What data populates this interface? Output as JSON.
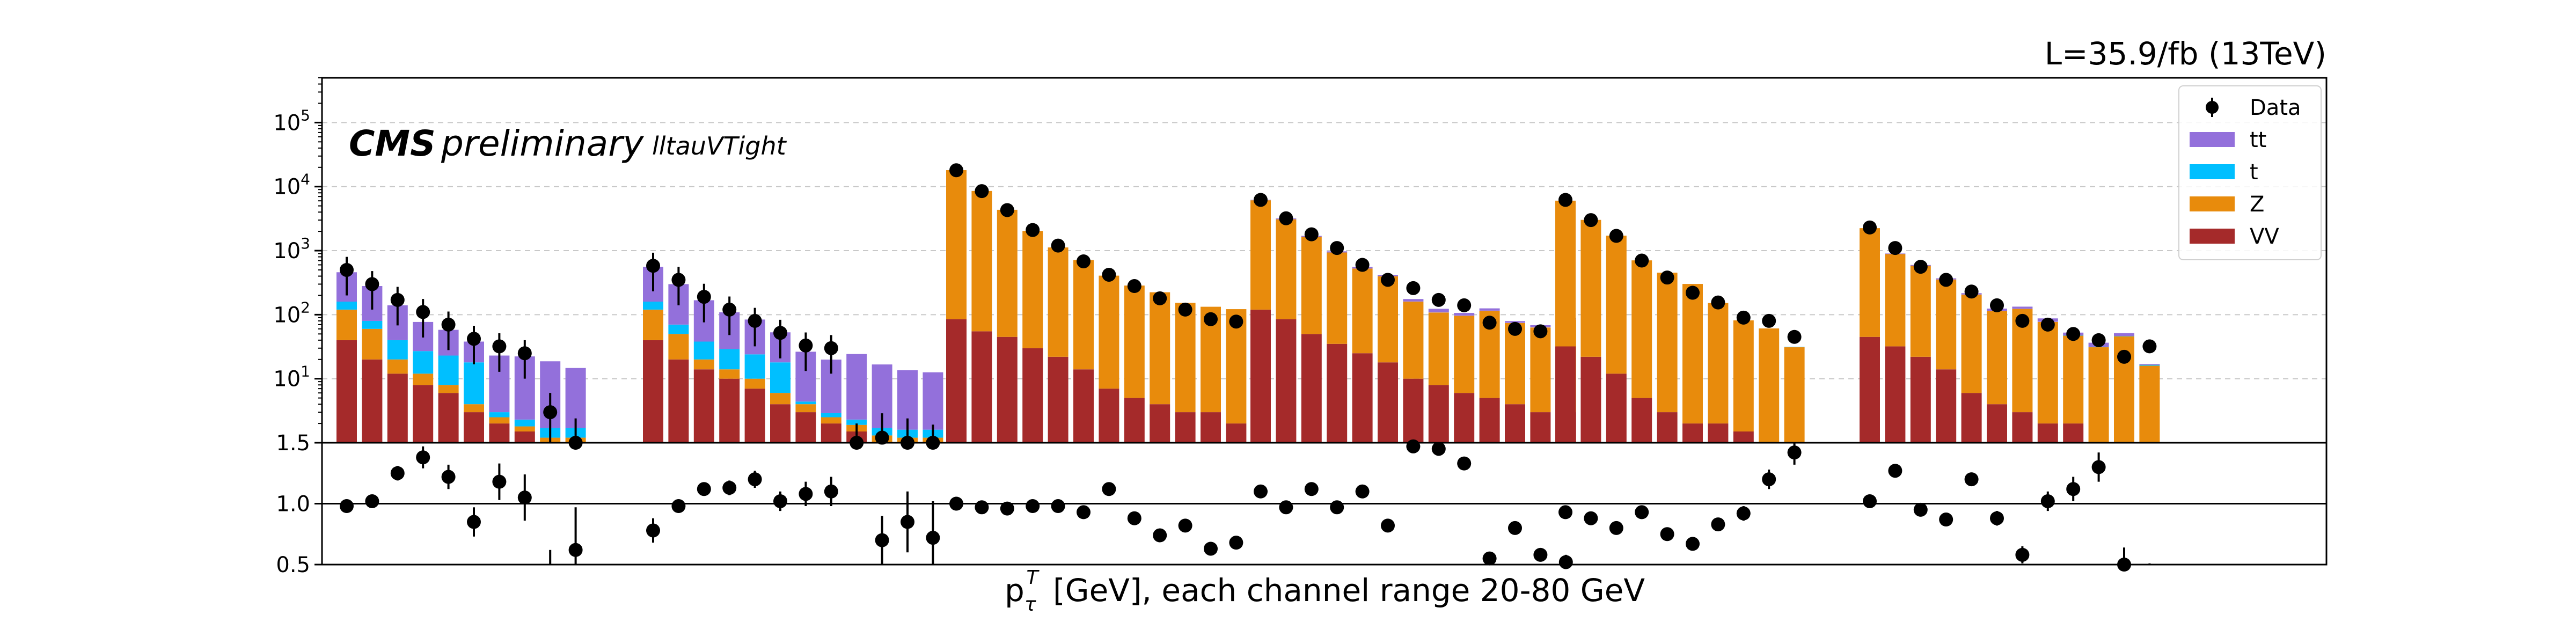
{
  "chart_data": {
    "type": "bar",
    "stacked": true,
    "log_scale_main": true,
    "lumi_label": "L=35.9/fb (13TeV)",
    "experiment": "CMS",
    "status": "preliminary",
    "selection_label": "lltauVTight",
    "xlabel_main": "[GeV], each channel range 20-80 GeV",
    "main_ylim": [
      1,
      500000
    ],
    "main_yticks": [
      "10^1",
      "10^2",
      "10^3",
      "10^4",
      "10^5"
    ],
    "ratio_ylim": [
      0.5,
      1.5
    ],
    "ratio_yticks": [
      "0.5",
      "1.0",
      "1.5"
    ],
    "grid": "horizontal dashed on main panel",
    "legend_position": "top-right",
    "legend": [
      {
        "name": "Data",
        "kind": "marker",
        "color": "#000000"
      },
      {
        "name": "tt",
        "kind": "box",
        "color": "#9370db"
      },
      {
        "name": "t",
        "kind": "box",
        "color": "#00bfff"
      },
      {
        "name": "Z",
        "kind": "box",
        "color": "#e88b0c"
      },
      {
        "name": "VV",
        "kind": "box",
        "color": "#a52a2a"
      }
    ],
    "channels": [
      {
        "bins": 10,
        "VV": [
          40,
          20,
          12,
          8,
          6,
          3,
          2,
          1.5,
          1,
          1
        ],
        "Z": [
          80,
          40,
          8,
          4,
          2,
          1,
          0.5,
          0.3,
          0.2,
          0.2
        ],
        "t": [
          40,
          20,
          20,
          15,
          15,
          14,
          0.5,
          0.5,
          0.5,
          0.5
        ],
        "tt": [
          300,
          200,
          100,
          50,
          35,
          20,
          20,
          20,
          17,
          13
        ],
        "data": [
          500,
          300,
          170,
          110,
          70,
          42,
          32,
          25,
          3,
          1
        ],
        "data_err": [
          0.6,
          0.6,
          0.6,
          0.6,
          0.6,
          0.6,
          0.6,
          0.6,
          1.0,
          1.4
        ],
        "ratio": [
          0.98,
          1.02,
          1.25,
          1.38,
          1.22,
          0.85,
          1.18,
          1.05,
          0.32,
          0.62
        ],
        "ratio_err": [
          0.02,
          0.04,
          0.06,
          0.09,
          0.1,
          0.12,
          0.15,
          0.19,
          0.3,
          0.35
        ]
      },
      {
        "bins": 12,
        "VV": [
          40,
          20,
          14,
          10,
          7,
          4,
          3,
          2,
          1.5,
          1,
          1,
          1
        ],
        "Z": [
          80,
          30,
          6,
          4,
          3,
          2,
          1,
          0.5,
          0.4,
          0.3,
          0.2,
          0.2
        ],
        "t": [
          40,
          20,
          18,
          15,
          14,
          12,
          0.4,
          0.4,
          0.4,
          0.4,
          0.4,
          0.4
        ],
        "tt": [
          400,
          230,
          130,
          80,
          60,
          35,
          22,
          17,
          22,
          15,
          12,
          11
        ],
        "data": [
          580,
          350,
          190,
          120,
          80,
          52,
          33,
          30,
          1,
          1.2,
          1,
          0.8
        ],
        "data_err": [
          0.6,
          0.6,
          0.6,
          0.6,
          0.6,
          0.6,
          0.6,
          0.6,
          1.0,
          1.4,
          1.4,
          1.4
        ],
        "ratio": [
          0.78,
          0.98,
          1.12,
          1.13,
          1.2,
          1.02,
          1.08,
          1.1,
          0.3,
          0.7,
          0.85,
          0.72
        ],
        "ratio_err": [
          0.1,
          0.02,
          0.04,
          0.06,
          0.07,
          0.08,
          0.1,
          0.12,
          0.2,
          0.2,
          0.25,
          0.3
        ]
      },
      {
        "bins": 12,
        "VV": [
          85,
          55,
          45,
          30,
          22,
          14,
          7,
          5,
          4,
          3,
          3,
          2
        ],
        "Z": [
          18000,
          8500,
          4300,
          2000,
          1100,
          700,
          400,
          280,
          220,
          150,
          130,
          120
        ],
        "t": [
          0.5,
          0.5,
          0.5,
          0.5,
          0.5,
          0.5,
          0.5,
          0.5,
          0.5,
          0.5,
          0.5,
          0.5
        ],
        "tt": [
          0.3,
          0.3,
          0.3,
          0.3,
          0.3,
          0.3,
          0.3,
          0.3,
          0.3,
          0.3,
          0.3,
          0.3
        ],
        "data": [
          18000,
          8500,
          4300,
          2100,
          1200,
          680,
          420,
          280,
          180,
          120,
          85,
          78
        ],
        "data_err": [
          0.05,
          0.05,
          0.05,
          0.05,
          0.06,
          0.07,
          0.08,
          0.1,
          0.1,
          0.1,
          0.12,
          0.12
        ],
        "ratio": [
          1.0,
          0.97,
          0.96,
          0.98,
          0.98,
          0.93,
          1.12,
          0.88,
          0.74,
          0.82,
          0.63,
          0.68
        ],
        "ratio_err": [
          0.01,
          0.01,
          0.01,
          0.02,
          0.02,
          0.02,
          0.03,
          0.03,
          0.03,
          0.04,
          0.04,
          0.04
        ]
      },
      {
        "bins": 13,
        "VV": [
          120,
          85,
          50,
          35,
          25,
          18,
          10,
          8,
          6,
          5,
          4,
          3,
          3
        ],
        "Z": [
          6000,
          3000,
          1600,
          900,
          500,
          380,
          150,
          100,
          90,
          110,
          70,
          60,
          80
        ],
        "t": [
          0.5,
          0.5,
          0.5,
          0.5,
          0.5,
          0.5,
          0.5,
          0.5,
          0.5,
          0.5,
          0.5,
          0.5,
          0.5
        ],
        "tt": [
          100,
          100,
          50,
          40,
          30,
          20,
          15,
          15,
          10,
          10,
          5,
          5,
          5
        ],
        "data": [
          6200,
          3200,
          1800,
          1100,
          600,
          350,
          260,
          170,
          140,
          75,
          60,
          55,
          50
        ],
        "data_err": [
          0.05,
          0.05,
          0.05,
          0.05,
          0.06,
          0.07,
          0.08,
          0.1,
          0.1,
          0.1,
          0.12,
          0.12,
          0.12
        ],
        "ratio": [
          1.1,
          0.97,
          1.12,
          0.97,
          1.1,
          0.82,
          1.47,
          1.45,
          1.33,
          0.55,
          0.8,
          0.58,
          0.52
        ],
        "ratio_err": [
          0.01,
          0.01,
          0.02,
          0.02,
          0.02,
          0.03,
          0.03,
          0.04,
          0.04,
          0.05,
          0.05,
          0.05,
          0.06
        ]
      },
      {
        "bins": 10,
        "VV": [
          32,
          22,
          12,
          5,
          3,
          2,
          2,
          1.5,
          1,
          1
        ],
        "Z": [
          6000,
          3000,
          1700,
          700,
          450,
          300,
          150,
          80,
          60,
          30
        ],
        "t": [
          0.5,
          0.5,
          0.5,
          0.5,
          0.5,
          0.5,
          0.5,
          0.5,
          0.5,
          0.5
        ],
        "tt": [
          0.3,
          0.3,
          0.3,
          0.3,
          0.3,
          0.3,
          0.3,
          0.3,
          0.3,
          0.3
        ],
        "data": [
          6200,
          3000,
          1700,
          700,
          380,
          220,
          155,
          90,
          80,
          45
        ],
        "data_err": [
          0.05,
          0.05,
          0.05,
          0.05,
          0.06,
          0.07,
          0.08,
          0.1,
          0.1,
          0.1
        ],
        "ratio": [
          0.93,
          0.88,
          0.8,
          0.93,
          0.75,
          0.67,
          0.83,
          0.92,
          1.2,
          1.42
        ],
        "ratio_err": [
          0.02,
          0.02,
          0.03,
          0.03,
          0.04,
          0.04,
          0.05,
          0.06,
          0.08,
          0.1
        ]
      },
      {
        "bins": 12,
        "VV": [
          45,
          32,
          22,
          14,
          6,
          4,
          3,
          2,
          2,
          1,
          1,
          1
        ],
        "Z": [
          2200,
          850,
          560,
          340,
          200,
          110,
          120,
          75,
          45,
          30,
          45,
          15
        ],
        "t": [
          0.5,
          0.5,
          0.5,
          0.5,
          0.5,
          0.5,
          0.5,
          0.5,
          0.5,
          0.5,
          0.5,
          0.5
        ],
        "tt": [
          20,
          20,
          15,
          15,
          10,
          10,
          10,
          10,
          5,
          5,
          5,
          0.5
        ],
        "data": [
          2300,
          1100,
          560,
          350,
          230,
          140,
          80,
          70,
          50,
          40,
          22,
          32
        ],
        "data_err": [
          0.05,
          0.05,
          0.05,
          0.05,
          0.06,
          0.07,
          0.08,
          0.1,
          0.1,
          0.1,
          0.12,
          0.12
        ],
        "ratio": [
          1.02,
          1.27,
          0.95,
          0.87,
          1.2,
          0.88,
          0.58,
          1.02,
          1.12,
          1.3,
          0.5,
          0.35
        ],
        "ratio_err": [
          0.02,
          0.03,
          0.03,
          0.04,
          0.05,
          0.06,
          0.07,
          0.08,
          0.1,
          0.12,
          0.14,
          0.16
        ]
      }
    ]
  }
}
